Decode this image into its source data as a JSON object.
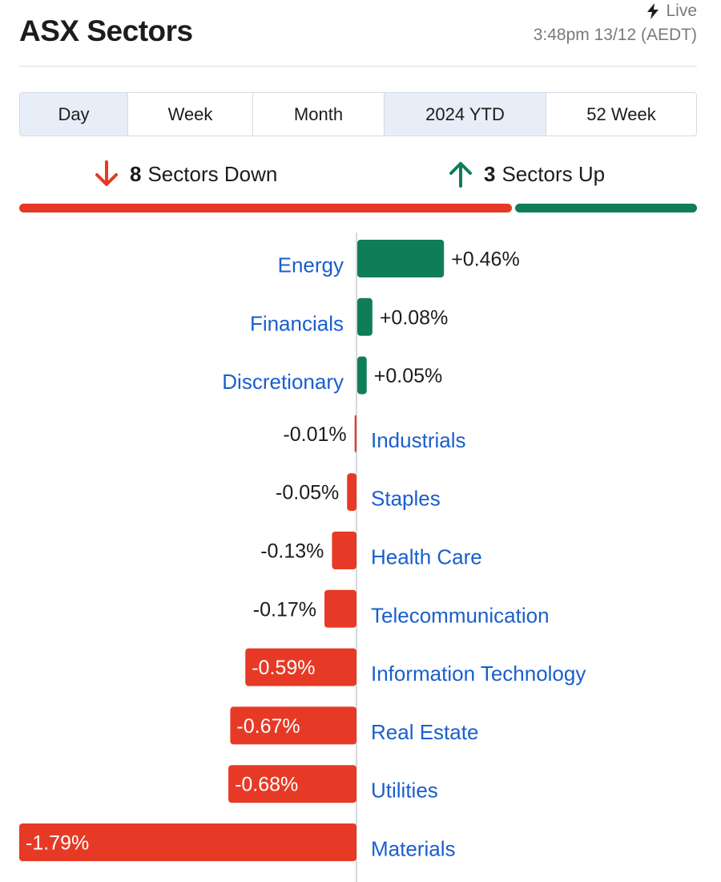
{
  "header": {
    "title": "ASX Sectors",
    "live_label": "Live",
    "timestamp": "3:48pm 13/12 (AEDT)"
  },
  "tabs": [
    {
      "label": "Day",
      "active": true
    },
    {
      "label": "Week",
      "active": false
    },
    {
      "label": "Month",
      "active": false
    },
    {
      "label": "2024 YTD",
      "active": true
    },
    {
      "label": "52 Week",
      "active": false
    }
  ],
  "summary": {
    "down_count": "8",
    "down_label": "Sectors Down",
    "up_count": "3",
    "up_label": "Sectors Up",
    "down_fraction": 0.727
  },
  "colors": {
    "positive": "#0f7d57",
    "negative": "#e63a26",
    "label_link": "#1a5fcc",
    "value_text": "#1c1c1c",
    "axis": "#d4d9df"
  },
  "icons": {
    "live": "lightning-bolt-icon",
    "down": "arrow-down-icon",
    "up": "arrow-up-icon"
  },
  "chart_data": {
    "type": "bar",
    "orientation": "horizontal",
    "categories": [
      "Energy",
      "Financials",
      "Discretionary",
      "Industrials",
      "Staples",
      "Health Care",
      "Telecommunication",
      "Information Technology",
      "Real Estate",
      "Utilities",
      "Materials"
    ],
    "values": [
      0.46,
      0.08,
      0.05,
      -0.01,
      -0.05,
      -0.13,
      -0.17,
      -0.59,
      -0.67,
      -0.68,
      -1.79
    ],
    "value_labels": [
      "+0.46%",
      "+0.08%",
      "+0.05%",
      "-0.01%",
      "-0.05%",
      "-0.13%",
      "-0.17%",
      "-0.59%",
      "-0.67%",
      "-0.68%",
      "-1.79%"
    ],
    "unit": "%",
    "xlim": [
      -1.79,
      1.79
    ],
    "grid": false,
    "legend": "none"
  }
}
